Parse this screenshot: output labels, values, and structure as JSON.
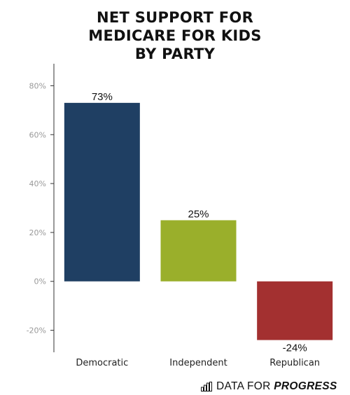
{
  "chart_data": {
    "type": "bar",
    "title": [
      "NET SUPPORT FOR",
      "MEDICARE FOR KIDS",
      "BY PARTY"
    ],
    "categories": [
      "Democratic",
      "Independent",
      "Republican"
    ],
    "values": [
      73,
      25,
      -24
    ],
    "data_labels": [
      "73%",
      "25%",
      "-24%"
    ],
    "colors": [
      "#1f3f63",
      "#9aaf2b",
      "#a33030"
    ],
    "y_ticks": [
      -20,
      0,
      20,
      40,
      60,
      80
    ],
    "y_tick_labels": [
      "-20%",
      "0%",
      "20%",
      "40%",
      "60%",
      "80%"
    ],
    "ylim": [
      -29,
      89
    ],
    "xlabel": "",
    "ylabel": "",
    "grid": false
  },
  "footer": {
    "brand_regular": "DATA FOR ",
    "brand_bold": "PROGRESS"
  }
}
